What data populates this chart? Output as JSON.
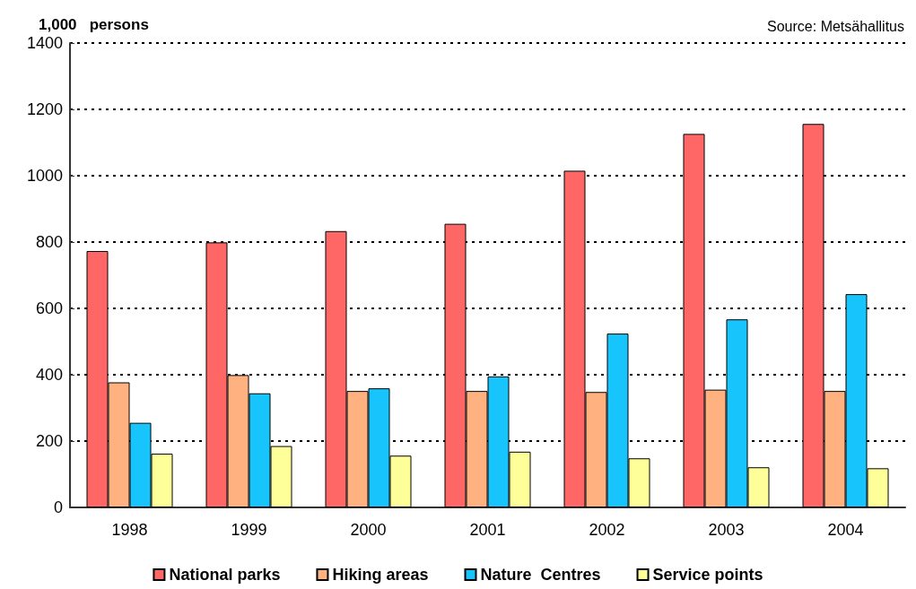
{
  "chart_data": {
    "type": "bar",
    "ylabel": "1,000   persons",
    "annotations": [
      "Source: Metsähallitus"
    ],
    "categories": [
      "1998",
      "1999",
      "2000",
      "2001",
      "2002",
      "2003",
      "2004"
    ],
    "series": [
      {
        "name": "National parks",
        "color": "#ff6666",
        "values": [
          773,
          799,
          833,
          855,
          1015,
          1126,
          1156
        ]
      },
      {
        "name": "Hiking areas",
        "color": "#ffb27f",
        "values": [
          377,
          399,
          351,
          351,
          348,
          355,
          351
        ]
      },
      {
        "name": "Nature  Centres",
        "color": "#17c5fc",
        "values": [
          255,
          344,
          359,
          395,
          524,
          567,
          643
        ]
      },
      {
        "name": "Service points",
        "color": "#ffff99",
        "values": [
          162,
          185,
          156,
          168,
          148,
          121,
          118
        ]
      }
    ],
    "ylim": [
      0,
      1400
    ],
    "yticks": [
      0,
      200,
      400,
      600,
      800,
      1000,
      1200,
      1400
    ],
    "grid": "y",
    "legend": "bottom"
  }
}
